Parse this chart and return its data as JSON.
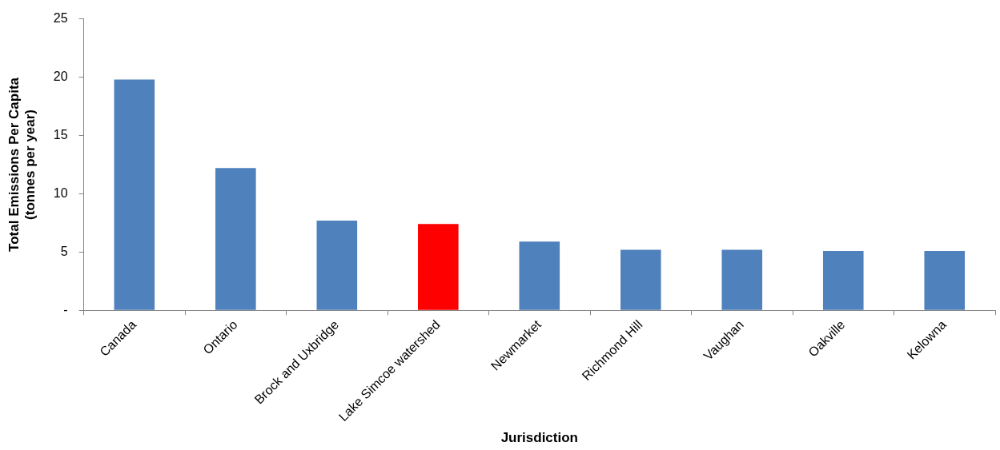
{
  "chart_data": {
    "type": "bar",
    "xlabel": "Jurisdiction",
    "ylabel": "Total Emissions Per Capita\n(tonnes per year)",
    "categories": [
      "Canada",
      "Ontario",
      "Brock and Uxbridge",
      "Lake Simcoe watershed",
      "Newmarket",
      "Richmond Hill",
      "Vaughan",
      "Oakville",
      "Kelowna"
    ],
    "values": [
      19.8,
      12.2,
      7.7,
      7.4,
      5.9,
      5.2,
      5.2,
      5.1,
      5.1
    ],
    "colors": [
      "#4f81bd",
      "#4f81bd",
      "#4f81bd",
      "#ff0000",
      "#4f81bd",
      "#4f81bd",
      "#4f81bd",
      "#4f81bd",
      "#4f81bd"
    ],
    "ylim": [
      0,
      25
    ],
    "yticks": [
      {
        "value": 0,
        "label": "-"
      },
      5,
      10,
      15,
      20,
      25
    ],
    "grid": false,
    "legend": false
  }
}
